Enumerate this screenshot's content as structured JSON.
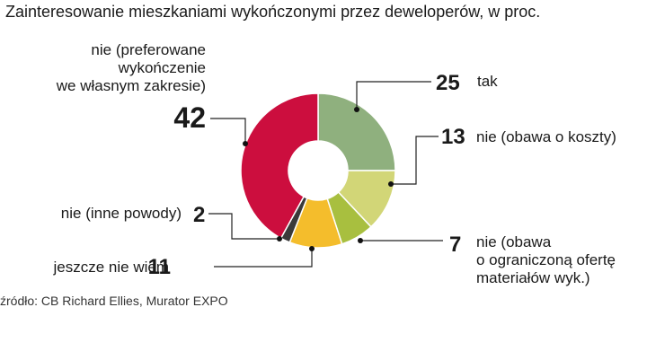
{
  "title": "Zainteresowanie mieszkaniami wykończonymi przez deweloperów, w proc.",
  "source": "źródło: CB Richard Ellies, Murator EXPO",
  "chart_data": {
    "type": "pie",
    "title": "Zainteresowanie mieszkaniami wykończonymi przez deweloperów, w proc.",
    "slices": [
      {
        "value": 25,
        "label": [
          "tak"
        ],
        "color": "#8fb07e"
      },
      {
        "value": 13,
        "label": [
          "nie (obawa o koszty)"
        ],
        "color": "#d2d677"
      },
      {
        "value": 7,
        "label": [
          "nie (obawa",
          "o ograniczoną ofertę",
          "materiałów wyk.)"
        ],
        "color": "#a8bf3f"
      },
      {
        "value": 11,
        "label": [
          "jeszcze nie wiem"
        ],
        "color": "#f4bd2c"
      },
      {
        "value": 2,
        "label": [
          "nie (inne powody)"
        ],
        "color": "#3a3a3a"
      },
      {
        "value": 42,
        "label": [
          "nie (preferowane",
          "wykończenie",
          "we własnym zakresie)"
        ],
        "color": "#cc0e3e"
      }
    ]
  }
}
